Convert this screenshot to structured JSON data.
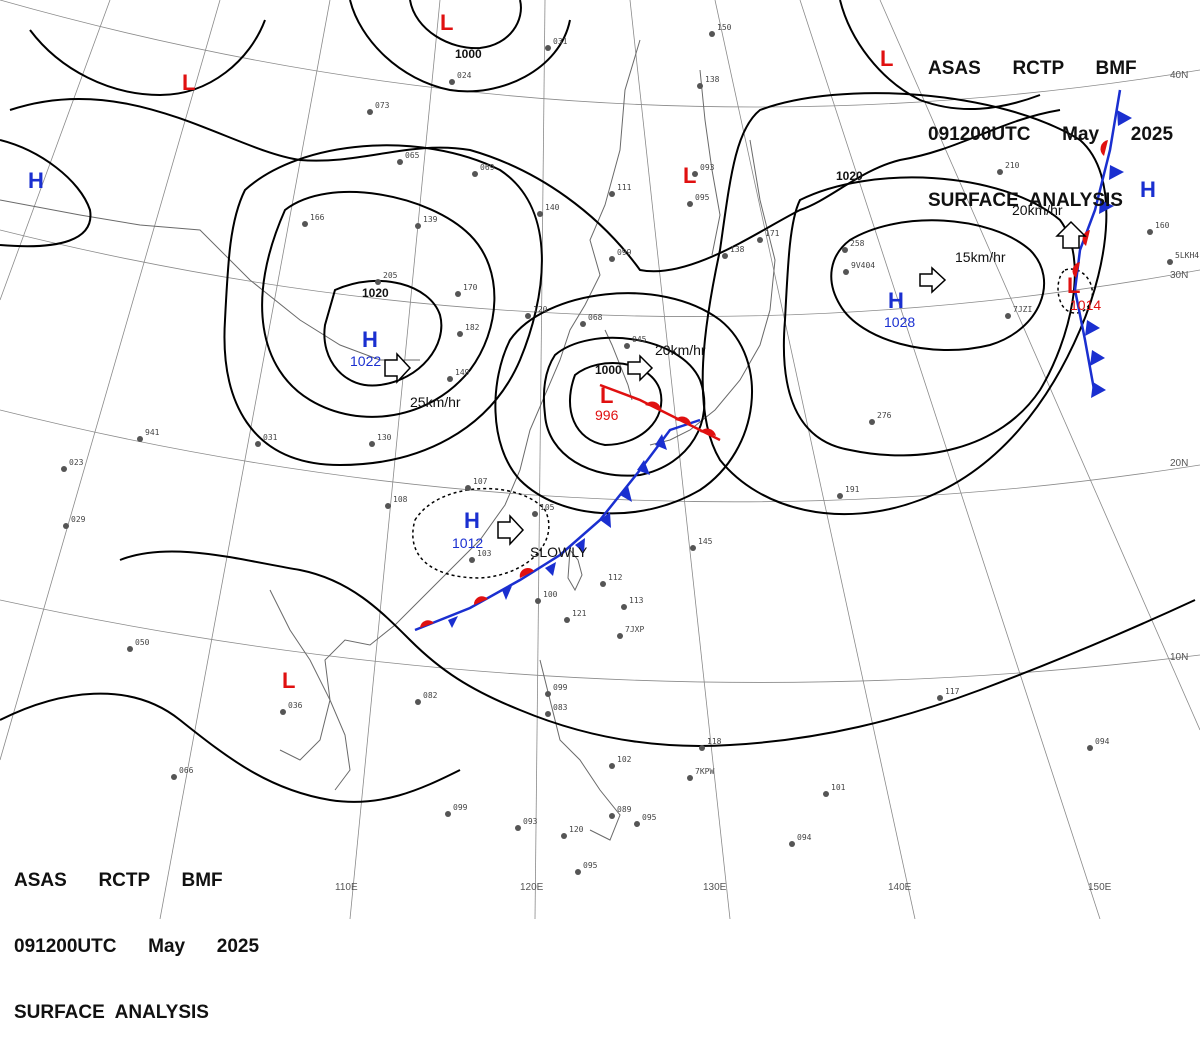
{
  "header": {
    "line1": "ASAS      RCTP      BMF",
    "line2": "091200UTC      May      2025",
    "line3": "SURFACE  ANALYSIS"
  },
  "grid_labels": {
    "lon": [
      "110E",
      "120E",
      "130E",
      "140E",
      "150E"
    ],
    "lat": [
      "40N",
      "30N",
      "20N",
      "10N"
    ]
  },
  "colors": {
    "high": "#1a2fd0",
    "low": "#e01010",
    "isobar": "#000000",
    "coast": "#6a6a6a",
    "grid": "#8a8a8a",
    "cold_front": "#1a2fd0",
    "warm_front": "#e01010"
  },
  "pressure_centers": [
    {
      "type": "H",
      "value": "1022"
    },
    {
      "type": "H",
      "value": "1012"
    },
    {
      "type": "H",
      "value": "1028"
    },
    {
      "type": "H",
      "value": ""
    },
    {
      "type": "H",
      "value": ""
    },
    {
      "type": "L",
      "value": "996"
    },
    {
      "type": "L",
      "value": "1014"
    },
    {
      "type": "L",
      "value": ""
    },
    {
      "type": "L",
      "value": ""
    },
    {
      "type": "L",
      "value": ""
    },
    {
      "type": "L",
      "value": ""
    }
  ],
  "isobar_labels": [
    "1000",
    "1020",
    "1000",
    "1020"
  ],
  "motion_labels": [
    "25km/hr",
    "SLOWLY",
    "20km/hr",
    "15km/hr",
    "20km/hr"
  ],
  "station_labels": [
    "031",
    "024",
    "073",
    "065",
    "069",
    "111",
    "140",
    "150",
    "138",
    "093",
    "095",
    "139",
    "166",
    "205",
    "170",
    "182",
    "149",
    "130",
    "120",
    "068",
    "045",
    "099",
    "138",
    "171",
    "258",
    "210",
    "160",
    "276",
    "191",
    "941",
    "031",
    "023",
    "029",
    "108",
    "107",
    "105",
    "103",
    "145",
    "112",
    "113",
    "121",
    "100",
    "082",
    "099",
    "093",
    "120",
    "089",
    "095",
    "099",
    "083",
    "118",
    "102",
    "101",
    "094",
    "094",
    "117",
    "036",
    "050",
    "066",
    "095",
    "5LKH4",
    "9V404",
    "7JZI",
    "7JXP",
    "7KPW"
  ]
}
